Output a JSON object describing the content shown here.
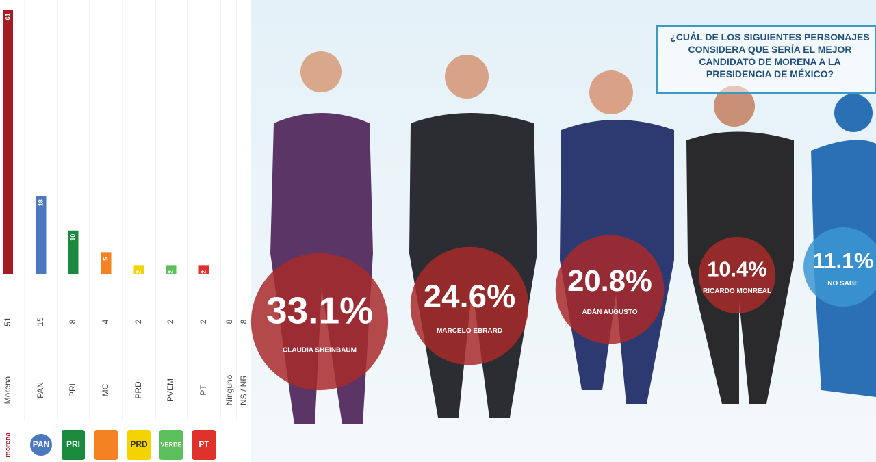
{
  "chart_data": [
    {
      "type": "bar",
      "categories": [
        "Morena",
        "PAN",
        "PRI",
        "MC",
        "PRD",
        "PVEM",
        "PT",
        "Ninguno",
        "NS / NR"
      ],
      "series": [
        {
          "color": [
            "#a51d24",
            "#4a79c0",
            "#1a8a3c",
            "#f58220",
            "#f5d300",
            "#5cbf5c",
            "#e0322b",
            null,
            null
          ],
          "values": [
            61,
            18,
            10,
            5,
            2,
            2,
            2,
            null,
            null
          ]
        },
        {
          "values": [
            51,
            15,
            8,
            4,
            2,
            2,
            2,
            8,
            8
          ]
        }
      ],
      "ylim": [
        0,
        62
      ],
      "logos": [
        "morena",
        "PAN",
        "PRI",
        null,
        "PRD",
        "VERDE",
        "PT"
      ]
    },
    {
      "type": "bubble",
      "title": "¿CUÁL DE LOS SIGUIENTES PERSONAJES CONSIDERA QUE SERÍA EL MEJOR CANDIDATO DE MORENA A LA PRESIDENCIA DE MÉXICO?",
      "categories": [
        "CLAUDIA SHEINBAUM",
        "MARCELO EBRARD",
        "ADÁN AUGUSTO",
        "RICARDO MONREAL",
        "NO SABE"
      ],
      "values": [
        33.1,
        24.6,
        20.8,
        10.4,
        11.1
      ],
      "value_labels": [
        "33.1%",
        "24.6%",
        "20.8%",
        "10.4%",
        "11.1%"
      ],
      "colors": [
        "#a82a2a",
        "#a82a2a",
        "#a82a2a",
        "#a82a2a",
        "#3c96d2"
      ]
    }
  ]
}
